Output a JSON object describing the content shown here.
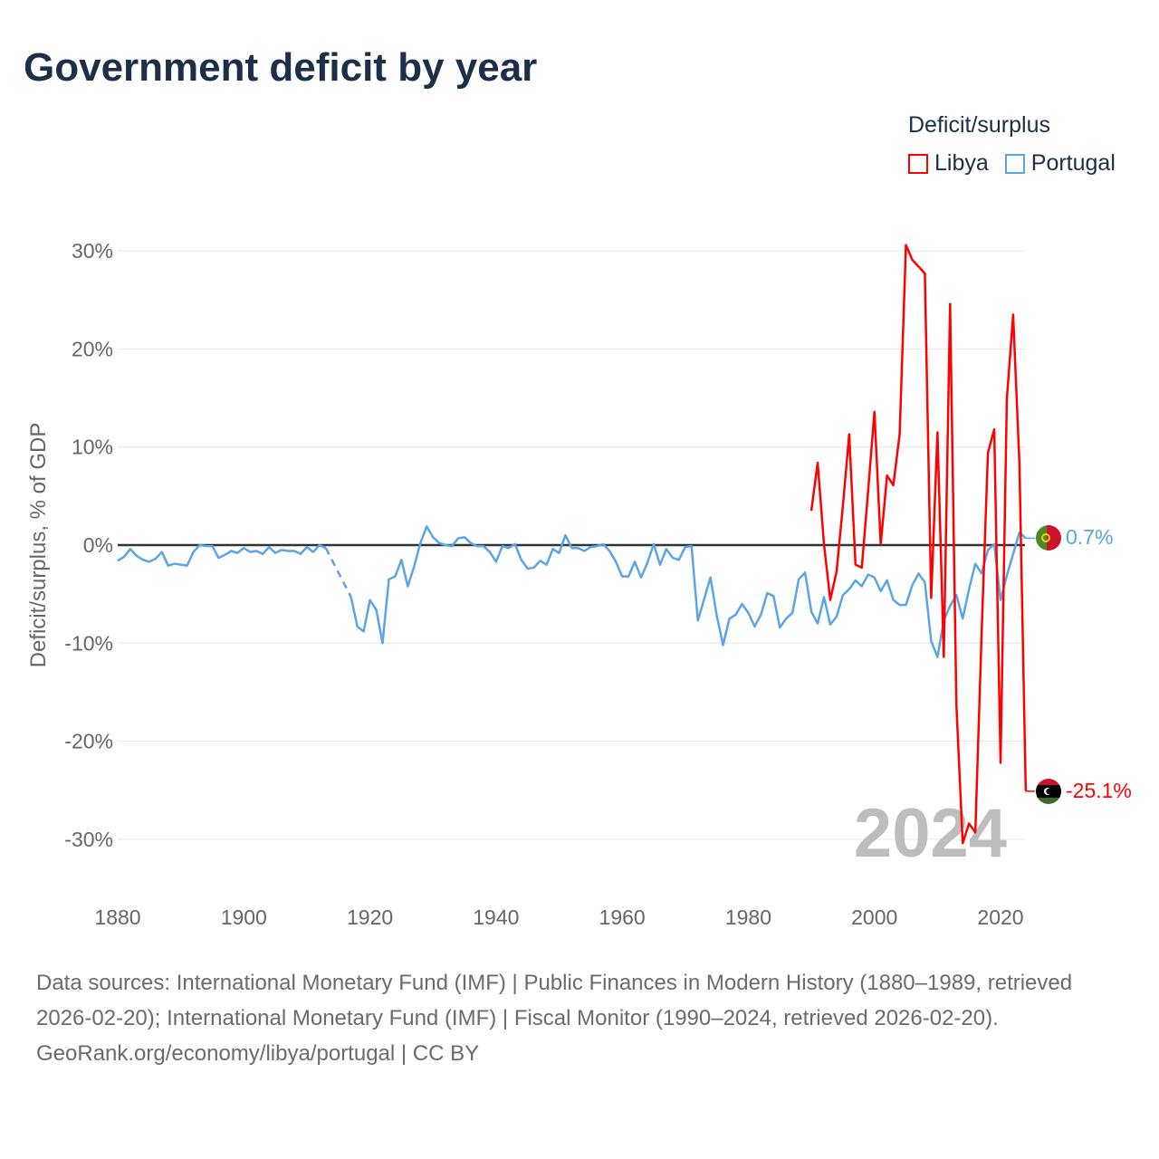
{
  "title": "Government deficit by year",
  "legend": {
    "title": "Deficit/surplus",
    "items": [
      {
        "name": "Libya",
        "color": "#ff0000"
      },
      {
        "name": "Portugal",
        "color": "#5aa4e8"
      }
    ]
  },
  "current_year": "2024",
  "end_labels": {
    "portugal": "0.7%",
    "libya": "-25.1%"
  },
  "footer": {
    "sources": "Data sources: International Monetary Fund (IMF) | Public Finances in Modern History (1880–1989, retrieved 2026-02-20); International Monetary Fund (IMF) | Fiscal Monitor (1990–2024, retrieved 2026-02-20).",
    "credit": "GeoRank.org/economy/libya/portugal | CC BY"
  },
  "chart_data": {
    "type": "line",
    "title": "Government deficit by year",
    "xlabel": "",
    "ylabel": "Deficit/surplus, % of GDP",
    "xlim": [
      1880,
      2024
    ],
    "ylim": [
      -35,
      32
    ],
    "x_ticks": [
      1880,
      1900,
      1920,
      1940,
      1960,
      1980,
      2000,
      2020
    ],
    "x_tick_labels": [
      "1880",
      "1900",
      "1920",
      "1940",
      "1960",
      "1980",
      "2000",
      "2020"
    ],
    "y_ticks": [
      30,
      20,
      10,
      0,
      -10,
      -20,
      -30
    ],
    "y_tick_labels": [
      "30%",
      "20%",
      "10%",
      "0%",
      "-10%",
      "-20%",
      "-30%"
    ],
    "grid": true,
    "legend_position": "top-right",
    "series": [
      {
        "name": "Libya",
        "color": "#ff0000",
        "start_year": 1990,
        "values": [
          3.5,
          8.4,
          0.1,
          -5.6,
          -2.7,
          4.0,
          11.3,
          -2.0,
          -2.3,
          5.5,
          13.6,
          0.1,
          7.1,
          6.1,
          11.3,
          30.6,
          29.1,
          28.4,
          27.7,
          -5.4,
          11.5,
          -11.4,
          24.6,
          -16.3,
          -30.4,
          -28.4,
          -29.3,
          -9.0,
          9.4,
          11.8,
          -22.2,
          14.9,
          23.5,
          8.2,
          -25.1
        ]
      },
      {
        "name": "Portugal",
        "color": "#5aa4e8",
        "start_year": 1880,
        "values": [
          -1.6,
          -1.2,
          -0.4,
          -1.1,
          -1.5,
          -1.7,
          -1.4,
          -0.7,
          -2.1,
          -1.9,
          -2.0,
          -2.1,
          -0.7,
          0.0,
          -0.1,
          -0.1,
          -1.3,
          -1.0,
          -0.6,
          -0.8,
          -0.3,
          -0.7,
          -0.6,
          -0.9,
          -0.2,
          -0.8,
          -0.5,
          -0.6,
          -0.6,
          -0.9,
          -0.2,
          -0.7,
          0.0,
          -0.3,
          null,
          null,
          null,
          -5.3,
          -8.3,
          -8.8,
          -5.6,
          -6.6,
          -10.0,
          -3.5,
          -3.2,
          -1.5,
          -4.2,
          -2.2,
          0.2,
          1.9,
          0.8,
          0.2,
          0.0,
          -0.1,
          0.7,
          0.8,
          0.2,
          -0.1,
          -0.1,
          -0.7,
          -1.7,
          -0.1,
          -0.3,
          0.1,
          -1.5,
          -2.4,
          -2.3,
          -1.6,
          -2.0,
          -0.4,
          -0.8,
          1.0,
          -0.3,
          -0.3,
          -0.6,
          -0.2,
          -0.1,
          0.1,
          -0.6,
          -1.7,
          -3.2,
          -3.2,
          -1.7,
          -3.3,
          -1.8,
          0.1,
          -2.0,
          -0.4,
          -1.3,
          -1.5,
          -0.2,
          -0.1,
          -7.7,
          -5.5,
          -3.3,
          -7.2,
          -10.2,
          -7.5,
          -7.1,
          -6.0,
          -6.9,
          -8.3,
          -7.1,
          -4.9,
          -5.2,
          -8.4,
          -7.5,
          -6.9,
          -3.5,
          -2.8,
          -6.8,
          -8.0,
          -5.3,
          -8.1,
          -7.3,
          -5.1,
          -4.5,
          -3.6,
          -4.2,
          -3.0,
          -3.3,
          -4.7,
          -3.6,
          -5.6,
          -6.1,
          -6.1,
          -4.1,
          -2.9,
          -3.8,
          -9.8,
          -11.4,
          -7.7,
          -6.2,
          -5.1,
          -7.5,
          -4.5,
          -1.9,
          -2.9,
          -0.5,
          0.1,
          -5.6,
          -3.1,
          -0.9,
          1.3,
          0.7
        ]
      }
    ]
  }
}
